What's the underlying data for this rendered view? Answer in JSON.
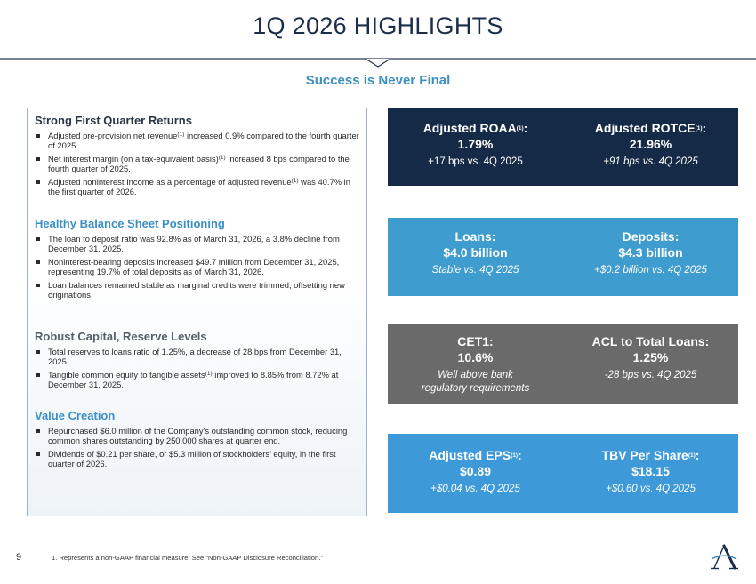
{
  "header": {
    "title": "1Q 2026 HIGHLIGHTS",
    "subtitle": "Success is Never Final"
  },
  "left": {
    "sections": [
      {
        "heading": "Strong First Quarter Returns",
        "bullets": [
          {
            "pre": "Adjusted pre-provision net revenue",
            "sup": "(1)",
            "post": " increased 0.9% compared to the fourth quarter of 2025."
          },
          {
            "pre": "Net interest margin (on a tax-equivalent basis)",
            "sup": "(1)",
            "post": " increased 8 bps compared to the fourth quarter of 2025."
          },
          {
            "pre": "Adjusted noninterest Income as a percentage of adjusted revenue",
            "sup": "(1)",
            "post": " was 40.7% in the first quarter of 2026."
          }
        ]
      },
      {
        "heading": "Healthy Balance Sheet Positioning",
        "bullets": [
          {
            "text": "The loan to deposit ratio was 92.8% as of March 31, 2026, a 3.8% decline from December 31, 2025."
          },
          {
            "text": "Noninterest-bearing deposits increased $49.7 million from December 31, 2025, representing 19.7% of total deposits as of March 31, 2026."
          },
          {
            "text": "Loan balances remained stable as marginal credits were trimmed, offsetting new originations."
          }
        ]
      },
      {
        "heading": "Robust Capital, Reserve Levels",
        "bullets": [
          {
            "text": "Total reserves to loans ratio of 1.25%, a decrease of 28 bps from December 31, 2025."
          },
          {
            "pre": "Tangible common equity to tangible assets",
            "sup": "(1)",
            "post": " improved to 8.85% from 8.72% at December 31, 2025."
          }
        ]
      },
      {
        "heading": "Value Creation",
        "bullets": [
          {
            "text": "Repurchased $6.0 million of the Company's outstanding common stock, reducing common shares outstanding by 250,000 shares at quarter end."
          },
          {
            "text": "Dividends of $0.21 per share, or $5.3 million of stockholders’ equity, in the first quarter of 2026."
          }
        ]
      }
    ]
  },
  "metrics": {
    "roaa": {
      "name": "Adjusted ROAA",
      "sup": "(1)",
      "suffix": ":",
      "value": "1.79%",
      "note": "+17 bps vs. 4Q 2025"
    },
    "rotce": {
      "name": "Adjusted ROTCE",
      "sup": "(1)",
      "suffix": ":",
      "value": "21.96%",
      "note": "+91 bps vs. 4Q 2025"
    },
    "loans": {
      "name": "Loans:",
      "value": "$4.0 billion",
      "note": "Stable vs. 4Q 2025"
    },
    "deposits": {
      "name": "Deposits:",
      "value": "$4.3 billion",
      "note": "+$0.2 billion vs. 4Q 2025"
    },
    "cet1": {
      "name": "CET1:",
      "value": "10.6%",
      "note_line1": "Well above bank",
      "note_line2": "regulatory requirements"
    },
    "acl": {
      "name": "ACL to Total Loans:",
      "value": "1.25%",
      "note": "-28 bps vs. 4Q 2025"
    },
    "eps": {
      "name": "Adjusted EPS",
      "sup": "(1)",
      "suffix": ":",
      "value": "$0.89",
      "note": "+$0.04 vs. 4Q 2025"
    },
    "tbv": {
      "name": "TBV Per Share",
      "sup": "(1)",
      "suffix": ":",
      "value": "$18.15",
      "note": "+$0.60 vs. 4Q 2025"
    }
  },
  "footer": {
    "page_number": "9",
    "footnote": "1. Represents a non-GAAP financial measure. See “Non-GAAP Disclosure Reconciliation.”"
  },
  "colors": {
    "title": "#1c2d4a",
    "accent_blue": "#3c8fc4",
    "box_navy": "#152a47",
    "box_teal": "#3e9ccf",
    "box_gray": "#6a6a6a",
    "box_blue": "#3d99d8"
  },
  "icons": {
    "logo": "company-logo-icon"
  }
}
